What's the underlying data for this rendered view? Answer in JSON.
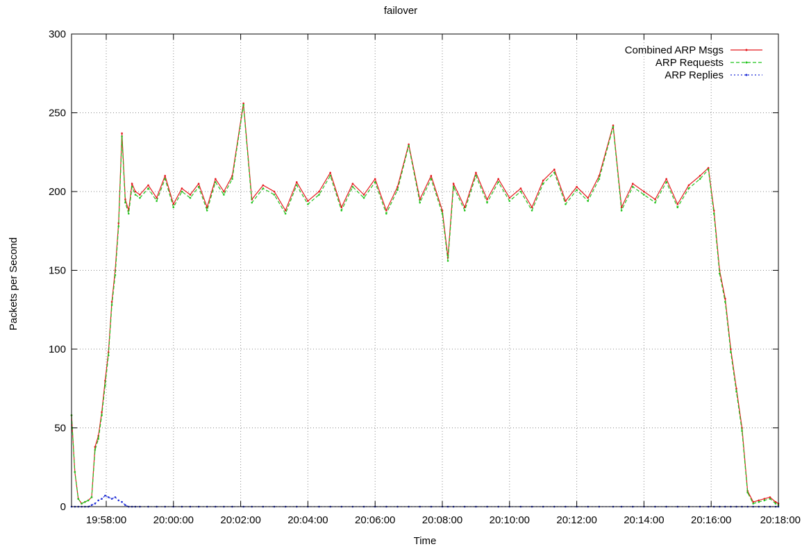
{
  "chart_data": {
    "type": "line",
    "title": "failover",
    "xlabel": "Time",
    "ylabel": "Packets per Second",
    "x_unit": "time of day (HH:MM:SS)",
    "xlim": [
      "19:56:58",
      "20:18:00"
    ],
    "ylim": [
      0,
      300
    ],
    "grid": true,
    "legend_position": "top-right",
    "x_ticks": [
      "19:58:00",
      "20:00:00",
      "20:02:00",
      "20:04:00",
      "20:06:00",
      "20:08:00",
      "20:10:00",
      "20:12:00",
      "20:14:00",
      "20:16:00",
      "20:18:00"
    ],
    "y_ticks": [
      "0",
      "50",
      "100",
      "150",
      "200",
      "250",
      "300"
    ],
    "x": [
      "19:56:58",
      "19:57:04",
      "19:57:10",
      "19:57:16",
      "19:57:22",
      "19:57:28",
      "19:57:34",
      "19:57:40",
      "19:57:46",
      "19:57:52",
      "19:57:58",
      "19:58:04",
      "19:58:10",
      "19:58:16",
      "19:58:22",
      "19:58:28",
      "19:58:34",
      "19:58:40",
      "19:58:46",
      "19:58:52",
      "19:59:00",
      "19:59:15",
      "19:59:30",
      "19:59:45",
      "20:00:00",
      "20:00:15",
      "20:00:30",
      "20:00:45",
      "20:01:00",
      "20:01:15",
      "20:01:30",
      "20:01:45",
      "20:02:05",
      "20:02:20",
      "20:02:40",
      "20:03:00",
      "20:03:20",
      "20:03:40",
      "20:04:00",
      "20:04:20",
      "20:04:40",
      "20:05:00",
      "20:05:20",
      "20:05:40",
      "20:06:00",
      "20:06:20",
      "20:06:40",
      "20:07:00",
      "20:07:20",
      "20:07:40",
      "20:08:00",
      "20:08:10",
      "20:08:20",
      "20:08:40",
      "20:09:00",
      "20:09:20",
      "20:09:40",
      "20:10:00",
      "20:10:20",
      "20:10:40",
      "20:11:00",
      "20:11:20",
      "20:11:40",
      "20:12:00",
      "20:12:20",
      "20:12:40",
      "20:13:05",
      "20:13:20",
      "20:13:40",
      "20:14:00",
      "20:14:20",
      "20:14:40",
      "20:15:00",
      "20:15:20",
      "20:15:40",
      "20:15:55",
      "20:16:05",
      "20:16:15",
      "20:16:25",
      "20:16:35",
      "20:16:45",
      "20:16:55",
      "20:17:05",
      "20:17:15",
      "20:17:25",
      "20:17:35",
      "20:17:45",
      "20:17:55",
      "20:18:00"
    ],
    "series": [
      {
        "name": "Combined ARP Msgs",
        "color": "#e4181c",
        "style": "solid",
        "values": [
          58,
          22,
          5,
          2,
          3,
          4,
          6,
          38,
          45,
          60,
          80,
          98,
          130,
          150,
          180,
          237,
          195,
          188,
          205,
          200,
          198,
          204,
          196,
          210,
          192,
          202,
          198,
          205,
          190,
          208,
          200,
          210,
          256,
          195,
          204,
          200,
          188,
          206,
          194,
          200,
          212,
          190,
          205,
          198,
          208,
          188,
          203,
          230,
          195,
          210,
          188,
          158,
          205,
          190,
          212,
          195,
          208,
          196,
          202,
          190,
          207,
          214,
          194,
          203,
          196,
          210,
          242,
          190,
          205,
          200,
          195,
          208,
          192,
          204,
          210,
          215,
          188,
          150,
          132,
          100,
          75,
          50,
          10,
          3,
          4,
          5,
          6,
          3,
          2
        ]
      },
      {
        "name": "ARP Requests",
        "color": "#22c31d",
        "style": "dashed",
        "values": [
          58,
          22,
          5,
          2,
          3,
          4,
          6,
          36,
          43,
          58,
          77,
          96,
          128,
          147,
          178,
          235,
          193,
          186,
          203,
          198,
          196,
          202,
          194,
          208,
          190,
          200,
          196,
          203,
          188,
          206,
          198,
          208,
          255,
          193,
          202,
          198,
          186,
          204,
          192,
          198,
          210,
          188,
          203,
          196,
          206,
          186,
          201,
          229,
          193,
          208,
          186,
          156,
          203,
          188,
          210,
          193,
          206,
          194,
          200,
          188,
          205,
          212,
          192,
          201,
          194,
          208,
          241,
          188,
          203,
          198,
          193,
          206,
          190,
          202,
          208,
          214,
          186,
          148,
          130,
          98,
          73,
          48,
          9,
          2,
          3,
          4,
          5,
          2,
          1
        ]
      },
      {
        "name": "ARP Replies",
        "color": "#1c2bd6",
        "style": "dotted",
        "values": [
          0,
          0,
          0,
          0,
          0,
          0,
          1,
          2,
          4,
          5,
          7,
          6,
          5,
          6,
          4,
          3,
          1,
          0,
          0,
          0,
          0,
          0,
          0,
          0,
          0,
          0,
          0,
          0,
          0,
          0,
          0,
          0,
          0,
          0,
          0,
          0,
          0,
          0,
          0,
          0,
          0,
          0,
          0,
          0,
          0,
          0,
          0,
          0,
          0,
          0,
          0,
          0,
          0,
          0,
          0,
          0,
          0,
          0,
          0,
          0,
          0,
          0,
          0,
          0,
          0,
          0,
          0,
          0,
          0,
          0,
          0,
          0,
          0,
          0,
          0,
          0,
          0,
          0,
          0,
          0,
          0,
          0,
          0,
          0,
          0,
          0,
          0,
          0,
          0
        ]
      }
    ]
  }
}
